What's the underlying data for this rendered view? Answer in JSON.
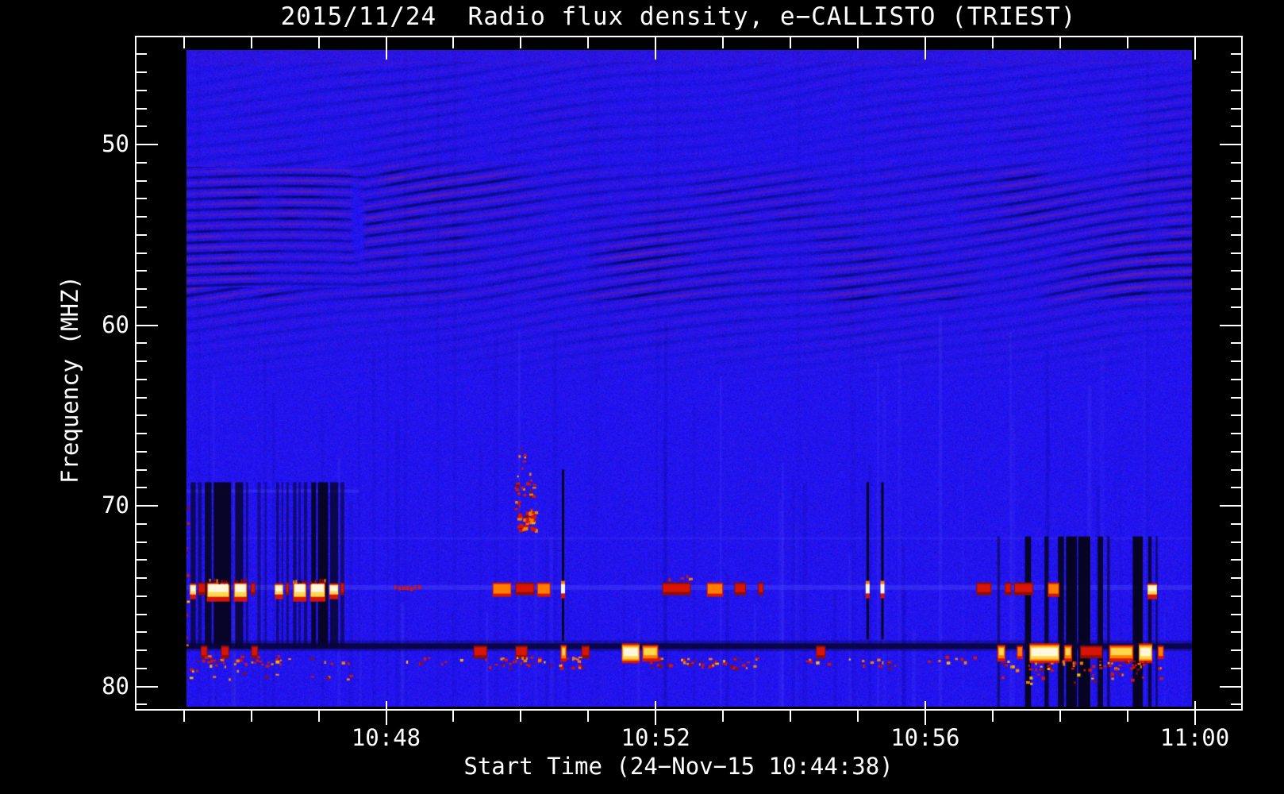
{
  "chart_data": {
    "type": "heatmap",
    "title": "2015/11/24  Radio flux density, e−CALLISTO (TRIEST)",
    "xlabel": "Start Time (24−Nov−15 10:44:38)",
    "ylabel": "Frequency (MHZ)",
    "x_ticks": [
      {
        "m": 48,
        "label": "10:48"
      },
      {
        "m": 52,
        "label": "10:52"
      },
      {
        "m": 56,
        "label": "10:56"
      },
      {
        "m": 60,
        "label": "11:00"
      }
    ],
    "x_minor_m": [
      45,
      46,
      47,
      49,
      50,
      51,
      53,
      54,
      55,
      57,
      58,
      59
    ],
    "y_ticks": [
      {
        "f": 50,
        "label": "50"
      },
      {
        "f": 60,
        "label": "60"
      },
      {
        "f": 70,
        "label": "70"
      },
      {
        "f": 80,
        "label": "80"
      }
    ],
    "y_minor_f": [
      45,
      46,
      47,
      48,
      49,
      51,
      52,
      53,
      54,
      55,
      56,
      57,
      58,
      59,
      61,
      62,
      63,
      64,
      65,
      66,
      67,
      68,
      69,
      71,
      72,
      73,
      74,
      75,
      76,
      77,
      78,
      79,
      81
    ],
    "y_axis": {
      "unit": "MHz",
      "reversed": true,
      "top_mhz": 44.8,
      "bottom_mhz": 81.1
    },
    "x_axis": {
      "start_label": "10:44:38",
      "end_tick": "11:00"
    },
    "colors": {
      "page_bg": "#000000",
      "frame": "#ffffff",
      "base_blue": "#1d13ee",
      "ripple_purple": "#761a96",
      "ripple_dark": "#05033c",
      "stripe_black": "#06041c",
      "rfi_white": "#fff8dc",
      "rfi_yellow": "#ffd84e",
      "rfi_orange": "#ff7e00",
      "rfi_red": "#d81404",
      "rfi_darkred": "#8f0e00",
      "absorption_navy": "#08053a"
    },
    "features": {
      "ripple_zones": {
        "faint_top_mhz": [
          45.4,
          50.6
        ],
        "strong_mhz": [
          50.6,
          58.6
        ],
        "fade_out_mhz": 63.5,
        "horizontal_band_left": {
          "t_max": 47.7,
          "mhz": [
            51.2,
            57.9
          ]
        }
      },
      "rfi_band_mhz": 74.6,
      "rfi_band_segments": [
        [
          45.09,
          0.09,
          "w"
        ],
        [
          45.21,
          0.11,
          "r"
        ],
        [
          45.34,
          0.34,
          "W"
        ],
        [
          45.74,
          0.2,
          "W"
        ],
        [
          45.99,
          0.07,
          "r"
        ],
        [
          46.35,
          0.12,
          "w"
        ],
        [
          46.51,
          0.05,
          "r"
        ],
        [
          46.62,
          0.2,
          "W"
        ],
        [
          46.87,
          0.23,
          "W"
        ],
        [
          47.16,
          0.13,
          "w"
        ],
        [
          47.32,
          0.06,
          "r"
        ],
        [
          48.12,
          0.38,
          "d"
        ],
        [
          49.58,
          0.28,
          "o"
        ],
        [
          49.92,
          0.28,
          "r"
        ],
        [
          50.24,
          0.2,
          "o"
        ],
        [
          52.1,
          0.42,
          "r"
        ],
        [
          52.76,
          0.24,
          "o"
        ],
        [
          53.17,
          0.17,
          "r"
        ],
        [
          53.52,
          0.08,
          "r"
        ],
        [
          56.76,
          0.22,
          "r"
        ],
        [
          57.18,
          0.1,
          "r"
        ],
        [
          57.32,
          0.28,
          "r"
        ],
        [
          57.82,
          0.17,
          "o"
        ],
        [
          59.3,
          0.14,
          "w"
        ]
      ],
      "absorption_line_mhz": 77.75,
      "bottom_blob_mhz": 78.1,
      "bottom_blobs": [
        [
          45.25,
          0.1,
          "R"
        ],
        [
          45.55,
          0.12,
          "R"
        ],
        [
          46.0,
          0.1,
          "R"
        ],
        [
          49.3,
          0.2,
          "R"
        ],
        [
          49.92,
          0.18,
          "R"
        ],
        [
          50.59,
          0.09,
          "Y"
        ],
        [
          50.9,
          0.12,
          "R"
        ],
        [
          51.5,
          0.26,
          "W"
        ],
        [
          51.8,
          0.24,
          "Y"
        ],
        [
          54.38,
          0.14,
          "R"
        ],
        [
          57.07,
          0.12,
          "Y"
        ],
        [
          57.36,
          0.09,
          "O"
        ],
        [
          57.55,
          0.44,
          "W"
        ],
        [
          58.06,
          0.12,
          "Y"
        ],
        [
          58.3,
          0.33,
          "R"
        ],
        [
          58.73,
          0.36,
          "Y"
        ],
        [
          59.17,
          0.2,
          "W"
        ],
        [
          59.45,
          0.09,
          "O"
        ]
      ],
      "left_dropout_stripes": {
        "mhz": [
          68.7,
          77.85
        ],
        "items": [
          [
            45.1,
            0.075,
            0.72
          ],
          [
            45.21,
            0.055,
            0.55
          ],
          [
            45.31,
            0.1,
            0.88
          ],
          [
            45.44,
            0.26,
            0.95
          ],
          [
            45.76,
            0.12,
            0.78
          ],
          [
            45.92,
            0.035,
            0.5
          ],
          [
            46.09,
            0.05,
            0.42
          ],
          [
            46.2,
            0.03,
            0.35
          ],
          [
            46.37,
            0.04,
            0.55
          ],
          [
            46.45,
            0.025,
            0.45
          ],
          [
            46.52,
            0.035,
            0.5
          ],
          [
            46.62,
            0.05,
            0.6
          ],
          [
            46.7,
            0.035,
            0.5
          ],
          [
            46.78,
            0.05,
            0.55
          ],
          [
            46.89,
            0.07,
            0.9
          ],
          [
            46.99,
            0.15,
            0.95
          ],
          [
            47.17,
            0.12,
            0.78
          ],
          [
            47.32,
            0.06,
            0.55
          ]
        ]
      },
      "right_dropout_stripes": {
        "mhz": [
          71.7,
          81.2
        ],
        "items": [
          [
            57.07,
            0.04,
            0.5
          ],
          [
            57.48,
            0.09,
            0.95
          ],
          [
            57.77,
            0.06,
            0.85
          ],
          [
            57.97,
            0.09,
            0.9
          ],
          [
            58.09,
            0.16,
            0.97
          ],
          [
            58.27,
            0.18,
            0.97
          ],
          [
            58.56,
            0.08,
            0.9
          ],
          [
            58.7,
            0.04,
            0.6
          ],
          [
            59.08,
            0.15,
            0.97
          ],
          [
            59.31,
            0.05,
            0.85
          ],
          [
            59.42,
            0.03,
            0.6
          ]
        ]
      },
      "thin_dropout_lines": [
        {
          "t": 50.62,
          "mhz": [
            68.0,
            77.5
          ],
          "bright_blob": true
        },
        {
          "t": 55.14,
          "mhz": [
            68.7,
            77.4
          ],
          "bright_blob": true
        },
        {
          "t": 55.36,
          "mhz": [
            68.7,
            77.4
          ],
          "bright_blob": true
        }
      ],
      "light_lines": [
        {
          "mhz": 74.52,
          "h": 6,
          "a": 0.3
        },
        {
          "mhz": 71.8,
          "h": 3,
          "a": 0.16
        }
      ],
      "burst_column": {
        "t": 50.05,
        "mhz": [
          66.7,
          71.35
        ]
      },
      "speckle_regions": [
        [
          44.88,
          45.05,
          68.5,
          80.0,
          0.25
        ],
        [
          45.1,
          46.45,
          78.25,
          78.85,
          0.5
        ],
        [
          46.5,
          47.6,
          78.3,
          78.7,
          0.15
        ],
        [
          48.2,
          49.1,
          78.35,
          78.75,
          0.25
        ],
        [
          49.4,
          50.9,
          78.35,
          78.95,
          0.5
        ],
        [
          51.9,
          53.6,
          78.35,
          78.95,
          0.55
        ],
        [
          53.9,
          55.6,
          78.4,
          78.75,
          0.2
        ],
        [
          56.0,
          56.9,
          78.3,
          78.7,
          0.25
        ],
        [
          57.0,
          59.6,
          78.55,
          79.05,
          0.5
        ],
        [
          49.93,
          50.22,
          70.3,
          71.35,
          1.6
        ],
        [
          49.9,
          50.2,
          68.2,
          70.3,
          0.5
        ],
        [
          49.95,
          50.17,
          66.7,
          68.2,
          0.25
        ],
        [
          52.1,
          52.6,
          73.8,
          74.1,
          0.4
        ],
        [
          55.0,
          55.55,
          78.6,
          79.0,
          0.35
        ],
        [
          45.05,
          47.5,
          79.0,
          79.6,
          0.12
        ],
        [
          57.0,
          59.5,
          79.2,
          79.8,
          0.15
        ]
      ]
    }
  }
}
